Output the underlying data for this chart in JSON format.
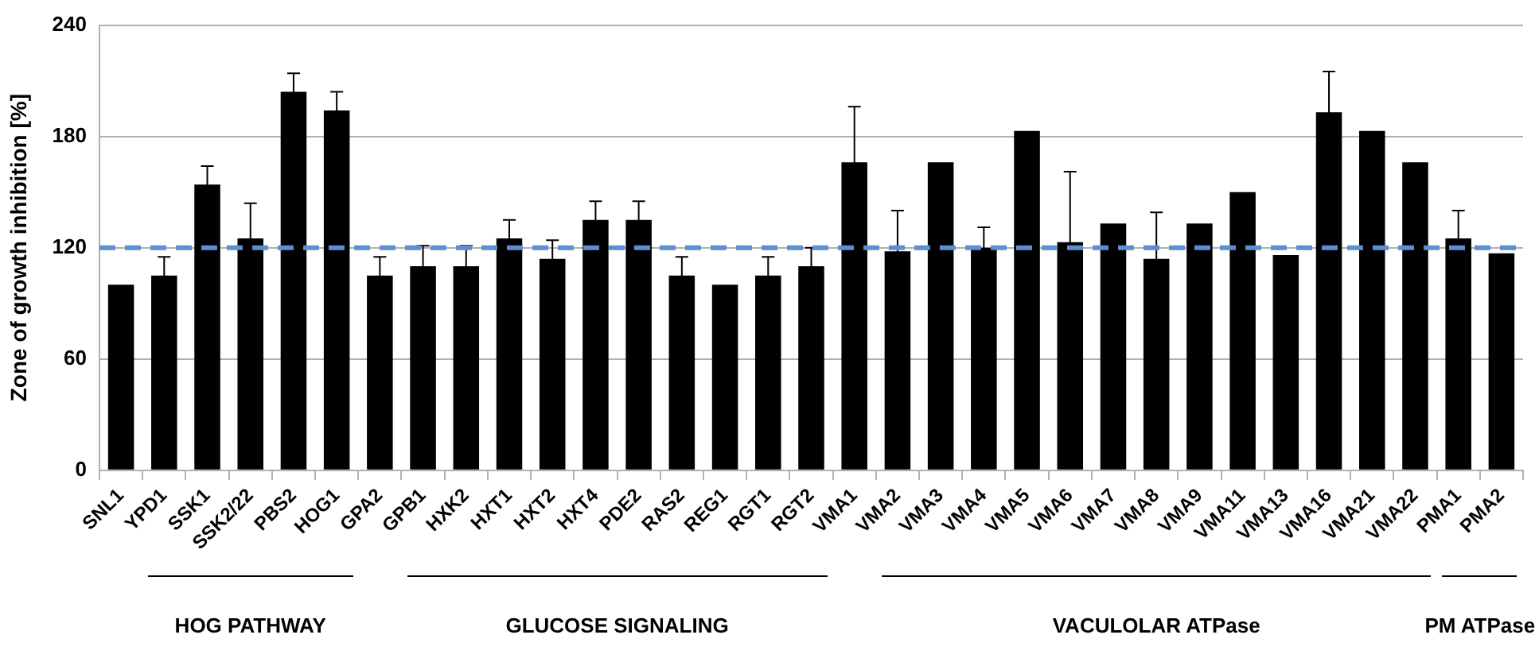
{
  "chart_data": {
    "type": "bar",
    "ylabel": "Zone of growth inhibition [%]",
    "categories": [
      "SNL1",
      "YPD1",
      "SSK1",
      "SSK2/22",
      "PBS2",
      "HOG1",
      "GPA2",
      "GPB1",
      "HXK2",
      "HXT1",
      "HXT2",
      "HXT4",
      "PDE2",
      "RAS2",
      "REG1",
      "RGT1",
      "RGT2",
      "VMA1",
      "VMA2",
      "VMA3",
      "VMA4",
      "VMA5",
      "VMA6",
      "VMA7",
      "VMA8",
      "VMA9",
      "VMA11",
      "VMA13",
      "VMA16",
      "VMA21",
      "VMA22",
      "PMA1",
      "PMA2"
    ],
    "values": [
      100,
      105,
      154,
      125,
      204,
      194,
      105,
      110,
      110,
      125,
      114,
      135,
      135,
      105,
      100,
      105,
      110,
      166,
      118,
      166,
      120,
      183,
      123,
      133,
      114,
      133,
      150,
      116,
      193,
      183,
      166,
      125,
      117
    ],
    "errors": [
      null,
      10,
      10,
      19,
      10,
      10,
      10,
      11,
      11,
      10,
      10,
      10,
      10,
      10,
      null,
      10,
      10,
      30,
      22,
      null,
      11,
      null,
      38,
      null,
      25,
      null,
      null,
      null,
      22,
      null,
      null,
      15,
      null
    ],
    "color": "#000000",
    "ylim": [
      0,
      240
    ],
    "yticks": [
      0,
      60,
      120,
      180,
      240
    ],
    "grid": "y",
    "ref_lines": [
      {
        "axis": "y",
        "value": 120,
        "color": "#5b8fd0",
        "line_style": "dashed"
      }
    ],
    "annotations": [
      "HOG PATHWAY",
      "GLUCOSE SIGNALING",
      "VACULOLAR ATPase",
      "PM ATPase"
    ]
  }
}
